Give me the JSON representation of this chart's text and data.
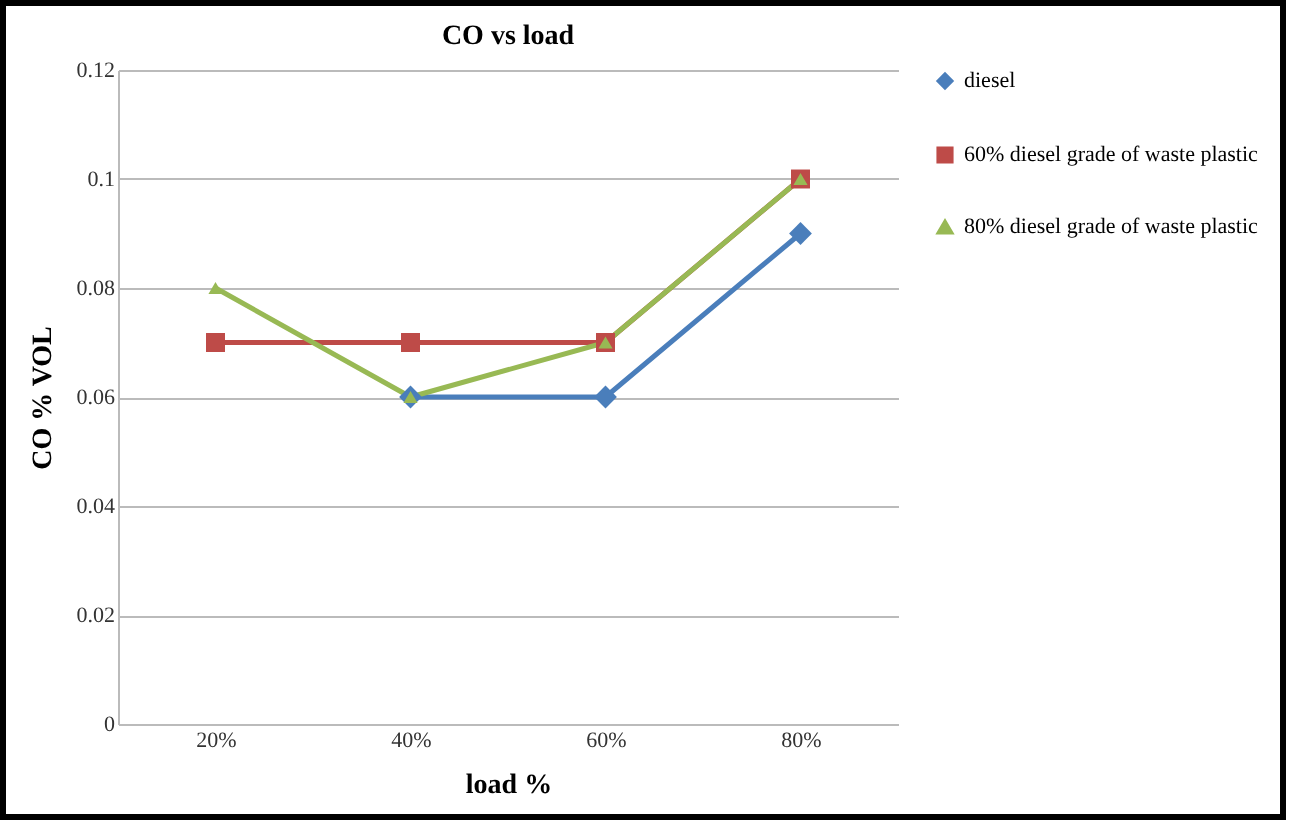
{
  "chart_data": {
    "type": "line",
    "title": "CO vs load",
    "xlabel": "load %",
    "ylabel": "CO  % VOL",
    "categories": [
      "20%",
      "40%",
      "60%",
      "80%"
    ],
    "series": [
      {
        "name": "diesel",
        "color": "#4a7ebb",
        "marker": "diamond",
        "values": [
          null,
          0.06,
          0.06,
          0.09
        ]
      },
      {
        "name": "60%  diesel grade of waste plastic",
        "color": "#be4b48",
        "marker": "square",
        "values": [
          0.07,
          0.07,
          0.07,
          0.1
        ]
      },
      {
        "name": "80% diesel grade of waste plastic",
        "color": "#98b954",
        "marker": "triangle",
        "values": [
          0.08,
          0.06,
          0.07,
          0.1
        ]
      }
    ],
    "ylim": [
      0,
      0.12
    ],
    "yticks": [
      0,
      0.02,
      0.04,
      0.06,
      0.08,
      0.1,
      0.12
    ],
    "grid": "y",
    "legend": "right"
  }
}
